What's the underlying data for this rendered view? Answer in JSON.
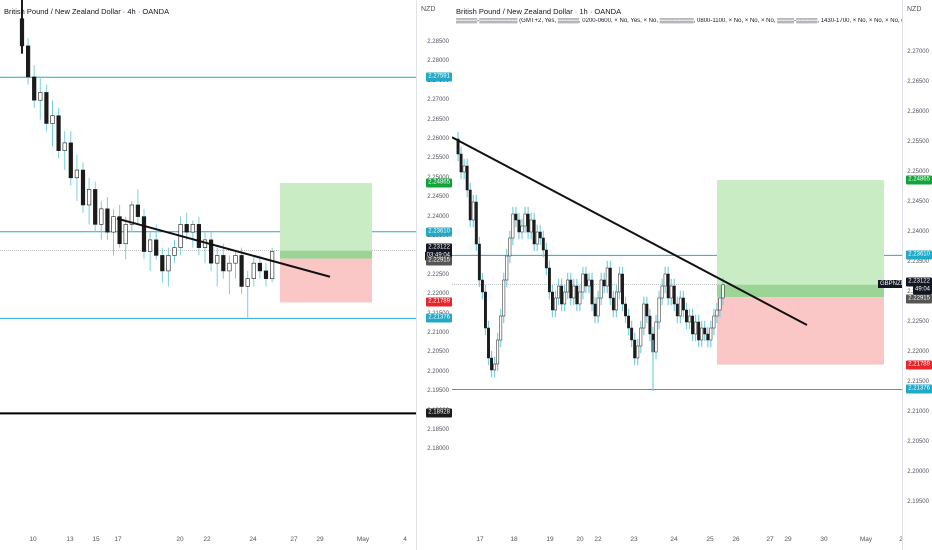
{
  "left": {
    "title": "British Pound / New Zealand Dollar · 4h · OANDA",
    "currency": "NZD",
    "price_ticks": [
      "2.28500",
      "2.28000",
      "2.27500",
      "2.27000",
      "2.26500",
      "2.26000",
      "2.25500",
      "2.25000",
      "2.24500",
      "2.24000",
      "2.23500",
      "2.23000",
      "2.22500",
      "2.22000",
      "2.21500",
      "2.21000",
      "2.20500",
      "2.20000",
      "2.19500",
      "2.19000",
      "2.18500",
      "2.18000"
    ],
    "tags": {
      "top_cyan": "2.27591",
      "green": "2.24865",
      "cyan_mid": "2.23610",
      "current": "2.23122",
      "timer": "03:49:04",
      "gray": "2.22915",
      "red": "2.21789",
      "cyan_low": "2.21376",
      "black": "2.18928"
    },
    "x_labels": [
      "10",
      "13",
      "15",
      "17",
      "20",
      "22",
      "24",
      "27",
      "29",
      "May",
      "4"
    ]
  },
  "right": {
    "title": "British Pound / New Zealand Dollar · 1h · OANDA",
    "subtitle": "▒▒▒▒▒-▒▒▒▒▒▒▒▒▒ (GMT+2, Yes, ▒▒▒▒▒, 0200-0600, × No, Yes, × No, ▒▒▒▒▒▒▒▒, 0800-1100, × No, × No, × No, ▒▒▒▒-▒▒▒▒▒, 1430-1700, × No, × No, × No, dot, 1, 100",
    "currency": "NZD",
    "price_ticks": [
      "2.27000",
      "2.26500",
      "2.26000",
      "2.25500",
      "2.25000",
      "2.24500",
      "2.24000",
      "2.23500",
      "2.23000",
      "2.22500",
      "2.22000",
      "2.21500",
      "2.21000",
      "2.20500",
      "2.20000",
      "2.19500"
    ],
    "tags": {
      "green": "2.24865",
      "cyan_mid": "2.23610",
      "current": "2.23122",
      "timer": "49:04",
      "gray": "2.22915",
      "red": "2.21789",
      "cyan_low": "2.21376"
    },
    "symbol_label": "GBPNZD",
    "x_labels": [
      "17",
      "18",
      "19",
      "20",
      "22",
      "23",
      "24",
      "25",
      "26",
      "27",
      "29",
      "30",
      "May",
      "2"
    ]
  },
  "colors": {
    "cyan": "#22a9c8",
    "green_zone": "#b8e6b2",
    "red_zone": "#fbb8b8",
    "bull": "#1b1b1b",
    "wick": "#7ad0e0"
  }
}
